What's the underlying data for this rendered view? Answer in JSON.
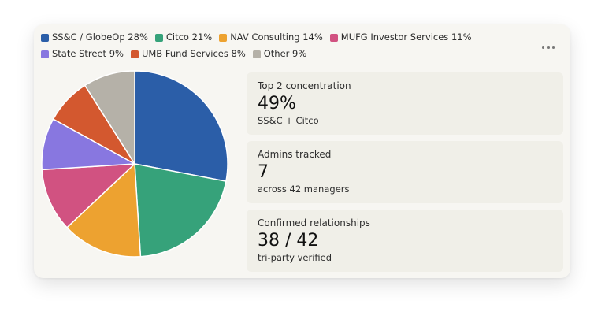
{
  "chart_data": {
    "type": "pie",
    "slices": [
      {
        "label": "SS&C / GlobeOp 28%",
        "value": 28,
        "color": "#2b5ea8"
      },
      {
        "label": "Citco 21%",
        "value": 21,
        "color": "#36a27a"
      },
      {
        "label": "NAV Consulting 14%",
        "value": 14,
        "color": "#eda230"
      },
      {
        "label": "MUFG Investor Services 11%",
        "value": 11,
        "color": "#d15281"
      },
      {
        "label": "State Street 9%",
        "value": 9,
        "color": "#8877e0"
      },
      {
        "label": "UMB Fund Services 8%",
        "value": 8,
        "color": "#d3582f"
      },
      {
        "label": "Other 9%",
        "value": 9,
        "color": "#b5b1a8"
      }
    ],
    "legend_position": "top"
  },
  "stats": [
    {
      "label": "Top 2 concentration",
      "value": "49%",
      "sub": "SS&C + Citco"
    },
    {
      "label": "Admins tracked",
      "value": "7",
      "sub": "across 42 managers"
    },
    {
      "label": "Confirmed relationships",
      "value": "38 / 42",
      "sub": "tri-party verified"
    }
  ],
  "icons": {
    "menu": "more-horizontal-icon"
  }
}
